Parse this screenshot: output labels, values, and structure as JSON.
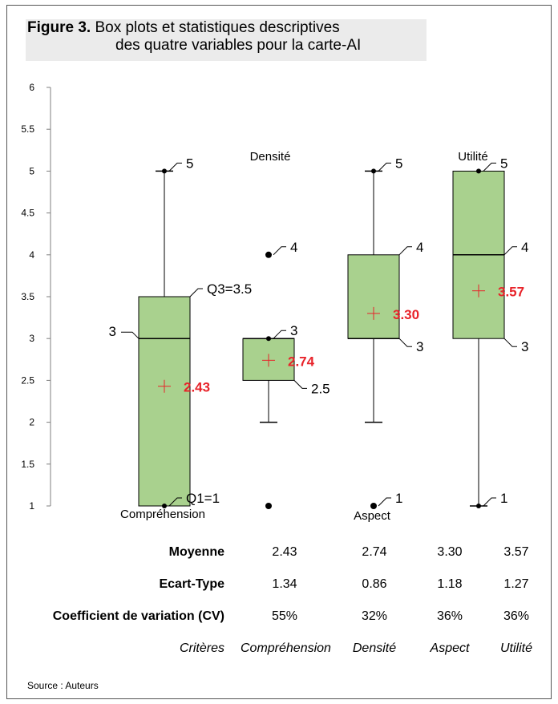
{
  "figure": {
    "label": "Figure 3.",
    "title_line1": "Box plots et statistiques descriptives",
    "title_line2": "des quatre variables pour la carte-AI"
  },
  "chart_data": {
    "type": "box",
    "ylim": [
      1,
      6
    ],
    "yticks": [
      "1",
      "1.5",
      "2",
      "2.5",
      "3",
      "3.5",
      "4",
      "4.5",
      "5",
      "5.5",
      "6"
    ],
    "boxes": [
      {
        "name": "Compréhension",
        "min": 1,
        "q1": 1,
        "median": 3,
        "q3": 3.5,
        "max": 5,
        "mean": 2.43,
        "mean_label": "2.43",
        "outliers": [],
        "annotations": [
          {
            "text": "5",
            "y": 5
          },
          {
            "text": "Q3=3.5",
            "y": 3.5
          },
          {
            "text": "3",
            "y": 3,
            "side": "left"
          },
          {
            "text": "Q1=1",
            "y": 1
          }
        ]
      },
      {
        "name": "Densité",
        "min": 2,
        "q1": 2.5,
        "median": 3,
        "q3": 3,
        "max": 3,
        "mean": 2.74,
        "mean_label": "2.74",
        "outliers": [
          4,
          1
        ],
        "annotations": [
          {
            "text": "4",
            "y": 4
          },
          {
            "text": "3",
            "y": 3
          },
          {
            "text": "2.5",
            "y": 2.5
          }
        ]
      },
      {
        "name": "Aspect",
        "min": 2,
        "q1": 3,
        "median": 3,
        "q3": 4,
        "max": 5,
        "mean": 3.3,
        "mean_label": "3.30",
        "outliers": [
          1
        ],
        "annotations": [
          {
            "text": "5",
            "y": 5
          },
          {
            "text": "4",
            "y": 4
          },
          {
            "text": "3",
            "y": 3
          },
          {
            "text": "1",
            "y": 1
          }
        ]
      },
      {
        "name": "Utilité",
        "min": 1,
        "q1": 3,
        "median": 4,
        "q3": 5,
        "max": 5,
        "mean": 3.57,
        "mean_label": "3.57",
        "outliers": [],
        "annotations": [
          {
            "text": "5",
            "y": 5
          },
          {
            "text": "4",
            "y": 4
          },
          {
            "text": "3",
            "y": 3
          },
          {
            "text": "1",
            "y": 1
          }
        ]
      }
    ],
    "box_color": "#a9d18e",
    "mean_color": "#e8232a",
    "axis_color": "#7f7f7f"
  },
  "stats": {
    "rows": [
      {
        "label": "Moyenne",
        "values": [
          "2.43",
          "2.74",
          "3.30",
          "3.57"
        ]
      },
      {
        "label": "Ecart-Type",
        "values": [
          "1.34",
          "0.86",
          "1.18",
          "1.27"
        ]
      },
      {
        "label": "Coefficient de variation (CV)",
        "values": [
          "55%",
          "32%",
          "36%",
          "36%"
        ]
      }
    ],
    "criteria_label": "Critères",
    "criteria": [
      "Compréhension",
      "Densité",
      "Aspect",
      "Utilité"
    ]
  },
  "source": "Source : Auteurs"
}
